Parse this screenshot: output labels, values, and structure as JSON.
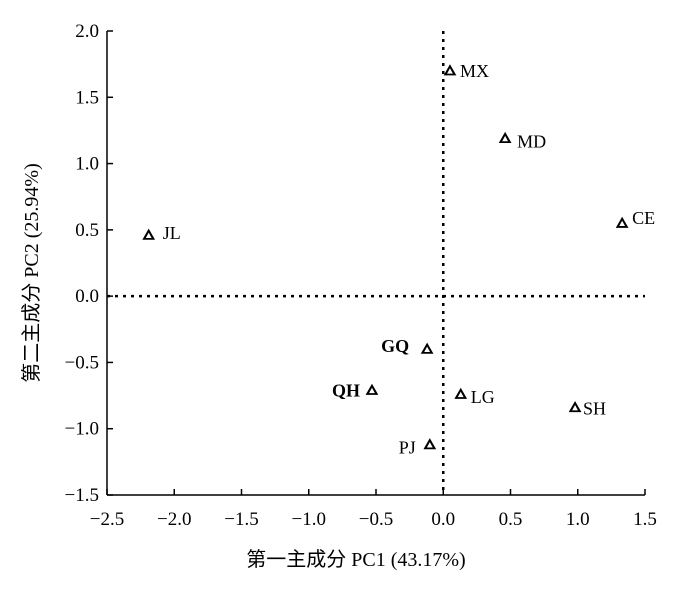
{
  "chart_data": {
    "type": "scatter",
    "title": "",
    "xlabel": "第一主成分 PC1 (43.17%)",
    "ylabel": "第二主成分 PC2 (25.94%)",
    "xlim": [
      -2.5,
      1.5
    ],
    "ylim": [
      -1.5,
      2.0
    ],
    "xticks": [
      "-2.5",
      "-2.0",
      "-1.5",
      "-1.0",
      "-0.5",
      "0.0",
      "0.5",
      "1.0",
      "1.5"
    ],
    "yticks": [
      "-1.5",
      "-1.0",
      "-0.5",
      "0.0",
      "0.5",
      "1.0",
      "1.5",
      "2.0"
    ],
    "marker": "triangle",
    "grid": false,
    "reference_lines": {
      "x": 0,
      "y": 0,
      "style": "dotted"
    },
    "points": [
      {
        "label": "MX",
        "x": 0.05,
        "y": 1.7
      },
      {
        "label": "MD",
        "x": 0.46,
        "y": 1.19
      },
      {
        "label": "CE",
        "x": 1.33,
        "y": 0.55
      },
      {
        "label": "JL",
        "x": -2.19,
        "y": 0.46
      },
      {
        "label": "GQ",
        "x": -0.12,
        "y": -0.4
      },
      {
        "label": "QH",
        "x": -0.53,
        "y": -0.71
      },
      {
        "label": "LG",
        "x": 0.13,
        "y": -0.74
      },
      {
        "label": "SH",
        "x": 0.98,
        "y": -0.84
      },
      {
        "label": "PJ",
        "x": -0.1,
        "y": -1.12
      }
    ]
  }
}
